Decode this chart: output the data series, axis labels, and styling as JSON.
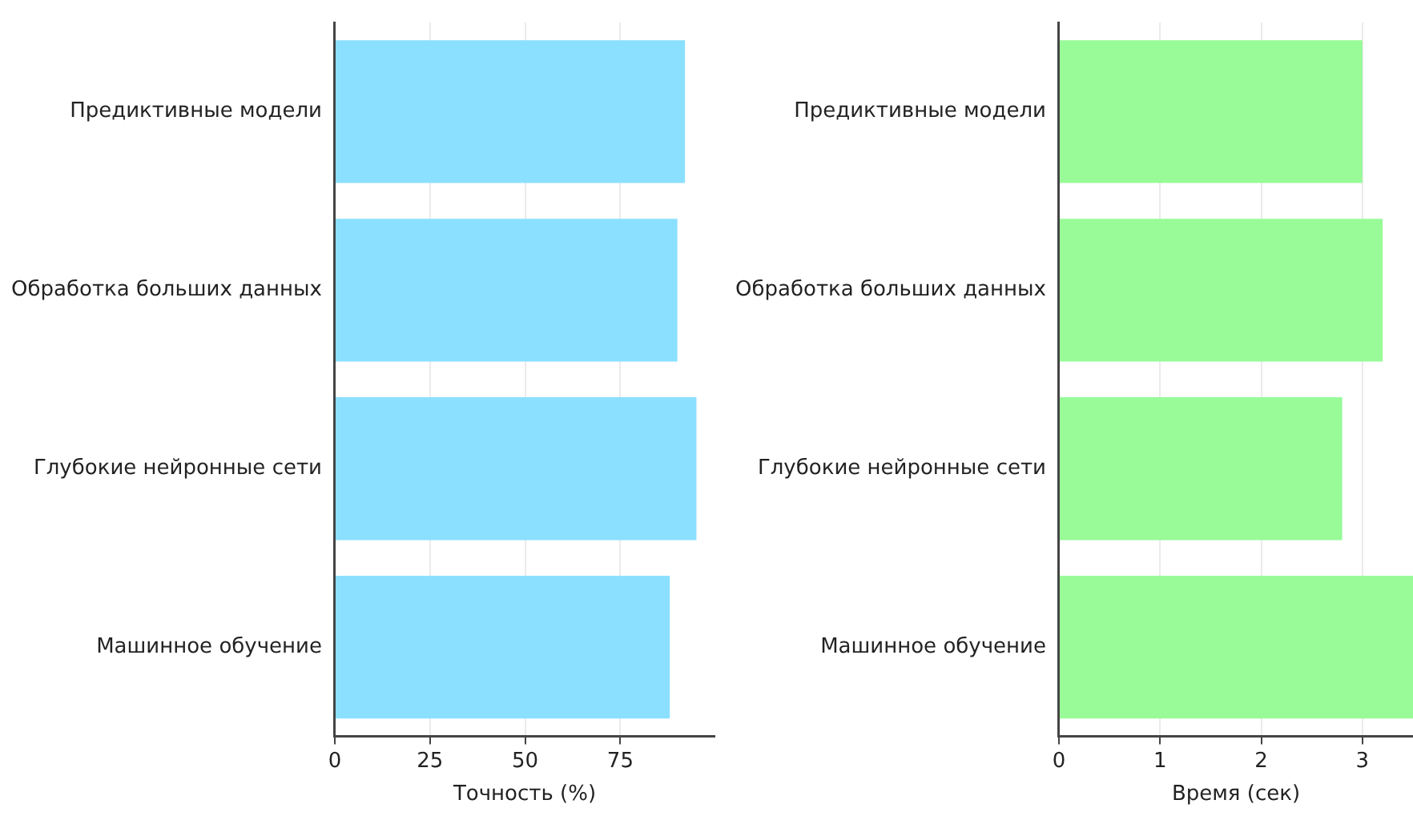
{
  "chart_data": [
    {
      "type": "bar",
      "orientation": "horizontal",
      "categories": [
        "Предиктивные модели",
        "Обработка больших данных",
        "Глубокие нейронные сети",
        "Машинное обучение"
      ],
      "values": [
        92,
        90,
        95,
        88
      ],
      "color": "#8be0ff",
      "xlabel": "Точность (%)",
      "xlim": [
        0,
        99.75
      ],
      "xticks": [
        0,
        25,
        50,
        75
      ],
      "grid": "x"
    },
    {
      "type": "bar",
      "orientation": "horizontal",
      "categories": [
        "Предиктивные модели",
        "Обработка больших данных",
        "Глубокие нейронные сети",
        "Машинное обучение"
      ],
      "values": [
        3.0,
        3.2,
        2.8,
        3.5
      ],
      "color": "#98fb98",
      "xlabel": "Время (сек)",
      "xlim": [
        0,
        3.5
      ],
      "xticks": [
        0,
        1,
        2,
        3
      ],
      "grid": "x"
    }
  ]
}
